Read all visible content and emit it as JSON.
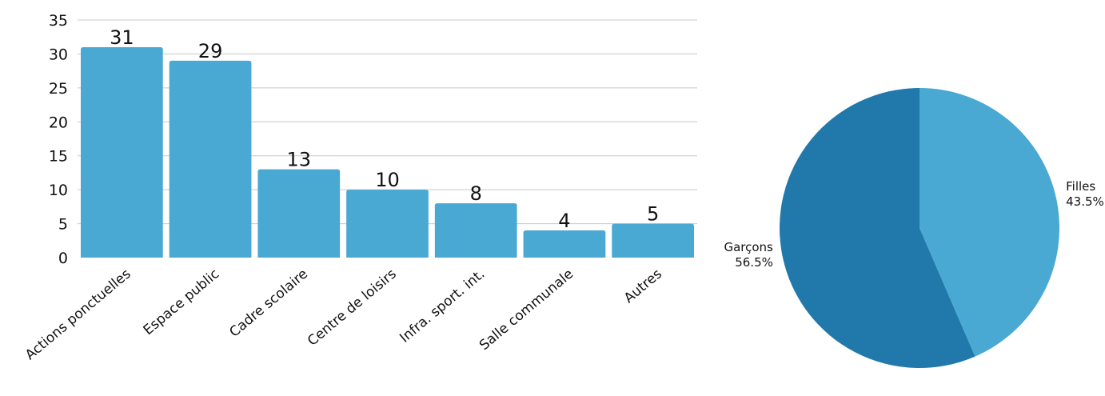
{
  "colors": {
    "bar": "#49a9d3",
    "pie_light": "#49a9d3",
    "pie_dark": "#2179ab",
    "grid": "#c8c8c8",
    "text": "#111111",
    "background": "#ffffff"
  },
  "chart_data": [
    {
      "type": "bar",
      "title": "",
      "xlabel": "",
      "ylabel": "",
      "categories": [
        "Actions ponctuelles",
        "Espace public",
        "Cadre scolaire",
        "Centre de loisirs",
        "Infra. sport. int.",
        "Salle communale",
        "Autres"
      ],
      "values": [
        31,
        29,
        13,
        10,
        8,
        4,
        5
      ],
      "ylim": [
        0,
        35
      ],
      "yticks": [
        0,
        5,
        10,
        15,
        20,
        25,
        30,
        35
      ],
      "grid": true,
      "data_labels": true
    },
    {
      "type": "pie",
      "title": "",
      "slices": [
        {
          "label": "Filles",
          "value": 43.5,
          "display": "43.5%"
        },
        {
          "label": "Garçons",
          "value": 56.5,
          "display": "56.5%"
        }
      ],
      "start": "top",
      "direction": "clockwise"
    }
  ]
}
